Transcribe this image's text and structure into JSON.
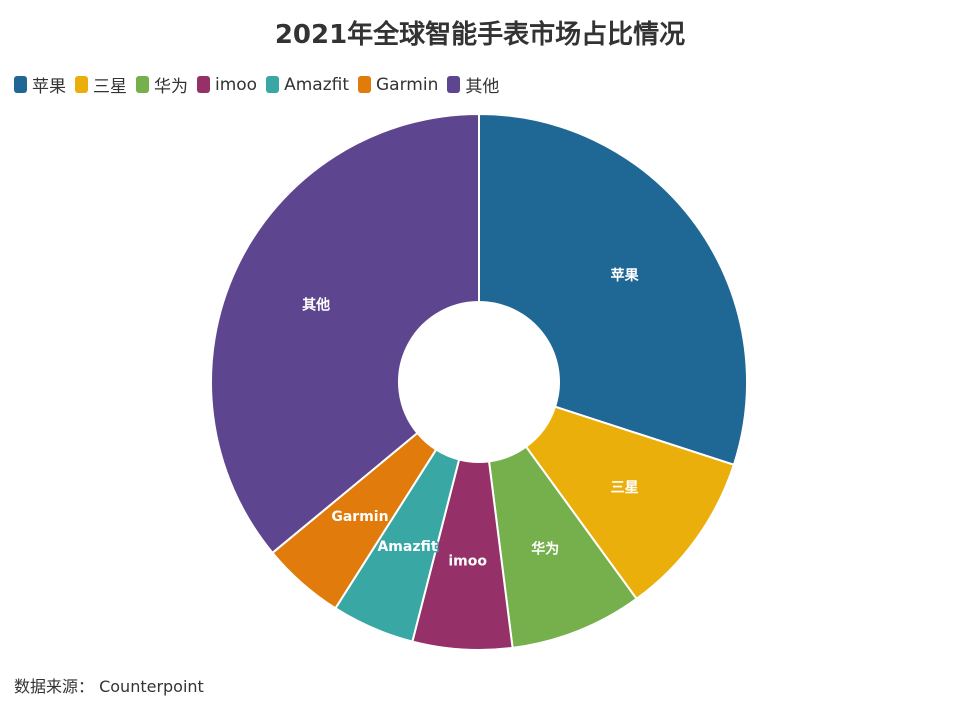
{
  "chart_data": {
    "type": "pie",
    "title": "2021年全球智能手表市场占比情况",
    "legend_position": "top-left",
    "donut": true,
    "slices": [
      {
        "label": "苹果",
        "value": 30,
        "color": "#1f6896"
      },
      {
        "label": "三星",
        "value": 10,
        "color": "#ebaf0c"
      },
      {
        "label": "华为",
        "value": 8,
        "color": "#75b04c"
      },
      {
        "label": "imoo",
        "value": 6,
        "color": "#963069"
      },
      {
        "label": "Amazfit",
        "value": 5,
        "color": "#39a7a4"
      },
      {
        "label": "Garmin",
        "value": 5,
        "color": "#e07b0c"
      },
      {
        "label": "其他",
        "value": 36,
        "color": "#5e458f"
      }
    ]
  },
  "source": "数据来源：  Counterpoint"
}
